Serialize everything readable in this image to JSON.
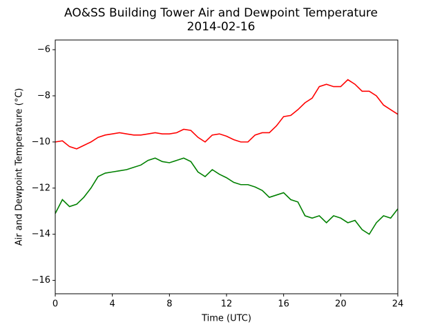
{
  "chart_data": {
    "type": "line",
    "title": "AO&SS Building Tower Air and Dewpoint Temperature",
    "subtitle": "2014-02-16",
    "x_label": "Time (UTC)",
    "y_label": "Air and Dewpoint Temperature (°C)",
    "x": [
      0,
      0.5,
      1,
      1.5,
      2,
      2.5,
      3,
      3.5,
      4,
      4.5,
      5,
      5.5,
      6,
      6.5,
      7,
      7.5,
      8,
      8.5,
      9,
      9.5,
      10,
      10.5,
      11,
      11.5,
      12,
      12.5,
      13,
      13.5,
      14,
      14.5,
      15,
      15.5,
      16,
      16.5,
      17,
      17.5,
      18,
      18.5,
      19,
      19.5,
      20,
      20.5,
      21,
      21.5,
      22,
      22.5,
      23,
      23.5,
      24
    ],
    "series": [
      {
        "color": "#ff0000",
        "values": [
          -10.0,
          -9.95,
          -10.2,
          -10.3,
          -10.15,
          -10.0,
          -9.8,
          -9.7,
          -9.65,
          -9.6,
          -9.65,
          -9.7,
          -9.7,
          -9.65,
          -9.6,
          -9.65,
          -9.65,
          -9.6,
          -9.45,
          -9.5,
          -9.8,
          -10.0,
          -9.7,
          -9.65,
          -9.75,
          -9.9,
          -10.0,
          -10.0,
          -9.7,
          -9.6,
          -9.6,
          -9.3,
          -8.9,
          -8.85,
          -8.6,
          -8.3,
          -8.1,
          -7.6,
          -7.5,
          -7.6,
          -7.6,
          -7.3,
          -7.5,
          -7.8,
          -7.8,
          -8.0,
          -8.4,
          -8.6,
          -8.8
        ]
      },
      {
        "color": "#008000",
        "values": [
          -13.1,
          -12.5,
          -12.8,
          -12.7,
          -12.4,
          -12.0,
          -11.5,
          -11.35,
          -11.3,
          -11.25,
          -11.2,
          -11.1,
          -11.0,
          -10.8,
          -10.7,
          -10.85,
          -10.9,
          -10.8,
          -10.7,
          -10.85,
          -11.3,
          -11.5,
          -11.2,
          -11.4,
          -11.55,
          -11.75,
          -11.85,
          -11.85,
          -11.95,
          -12.1,
          -12.4,
          -12.3,
          -12.2,
          -12.5,
          -12.6,
          -13.2,
          -13.3,
          -13.2,
          -13.5,
          -13.2,
          -13.3,
          -13.5,
          -13.4,
          -13.8,
          -14.0,
          -13.5,
          -13.2,
          -13.3,
          -12.9
        ]
      }
    ],
    "xlim": [
      0,
      24
    ],
    "xticks": [
      0,
      4,
      8,
      12,
      16,
      20,
      24
    ],
    "ylim": [
      -16.58,
      -5.58
    ],
    "yticks": [
      {
        "value": -16,
        "label": "−16"
      },
      {
        "value": -14,
        "label": "−14"
      },
      {
        "value": -12,
        "label": "−12"
      },
      {
        "value": -10,
        "label": "−10"
      },
      {
        "value": -8,
        "label": "−8"
      },
      {
        "value": -6,
        "label": "−6"
      }
    ],
    "grid": false
  }
}
